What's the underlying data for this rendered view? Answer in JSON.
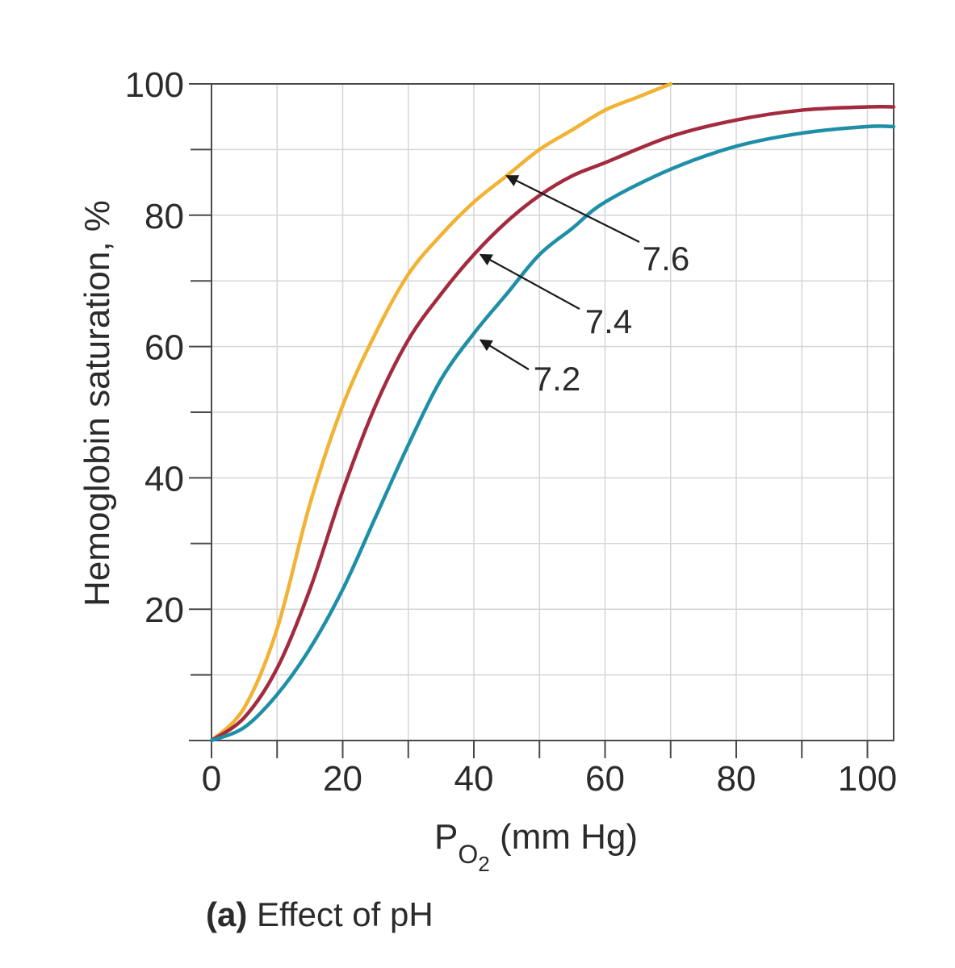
{
  "chart_data": {
    "type": "line",
    "xlabel": {
      "prefix": "P",
      "subscript_main": "O",
      "subscript_digit": "2",
      "suffix": " (mm Hg)"
    },
    "ylabel": "Hemoglobin saturation, %",
    "xlim": [
      0,
      104
    ],
    "ylim": [
      0,
      100
    ],
    "x_ticks": [
      0,
      20,
      40,
      60,
      80,
      100
    ],
    "x_tick_labels": [
      "0",
      "20",
      "40",
      "60",
      "80",
      "100"
    ],
    "y_ticks": [
      20,
      40,
      60,
      80,
      100
    ],
    "y_tick_labels": [
      "20",
      "40",
      "60",
      "80",
      "100"
    ],
    "grid": true,
    "series": [
      {
        "name": "7.6",
        "color": "#f2b233",
        "x": [
          0,
          5,
          10,
          15,
          20,
          25,
          30,
          35,
          40,
          45,
          50,
          55,
          60,
          65,
          70
        ],
        "y": [
          0,
          5,
          17,
          36,
          51,
          62,
          71,
          77,
          82,
          86,
          90,
          93,
          96,
          98,
          100
        ]
      },
      {
        "name": "7.4",
        "color": "#a32b3f",
        "x": [
          0,
          5,
          10,
          15,
          20,
          25,
          30,
          35,
          40,
          45,
          50,
          55,
          60,
          70,
          80,
          90,
          100,
          104
        ],
        "y": [
          0,
          3.5,
          11,
          23,
          38,
          51,
          61,
          68,
          74,
          79,
          83,
          86,
          88,
          92,
          94.5,
          96,
          96.5,
          96.5
        ]
      },
      {
        "name": "7.2",
        "color": "#1f8fa8",
        "x": [
          0,
          5,
          10,
          15,
          20,
          25,
          30,
          35,
          40,
          45,
          50,
          55,
          60,
          70,
          80,
          90,
          100,
          104
        ],
        "y": [
          0,
          2,
          7,
          14,
          23,
          34,
          45,
          55,
          62,
          68,
          74,
          78,
          82,
          87,
          90.5,
          92.5,
          93.5,
          93.5
        ]
      }
    ],
    "annotations": [
      {
        "text": "7.6",
        "series": "7.6",
        "arrow_to": [
          45,
          86
        ]
      },
      {
        "text": "7.4",
        "series": "7.4",
        "arrow_to": [
          41,
          74
        ]
      },
      {
        "text": "7.2",
        "series": "7.2",
        "arrow_to": [
          41,
          61
        ]
      }
    ],
    "caption": {
      "bold": "(a)",
      "text": " Effect of pH"
    }
  }
}
